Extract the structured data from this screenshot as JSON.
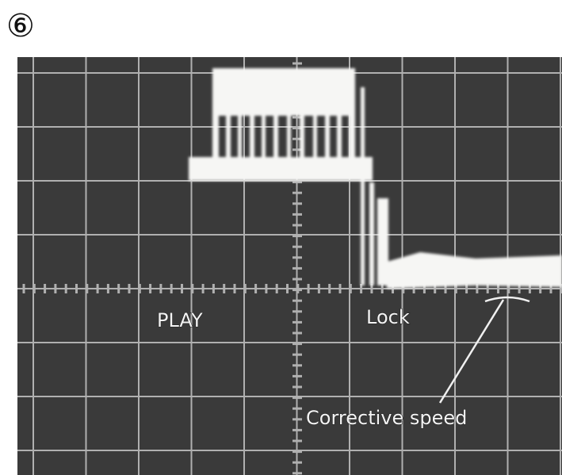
{
  "figure_number": "⑥",
  "annotations": {
    "play": "PLAY",
    "lock": "Lock",
    "corrective": "Corrective speed"
  }
}
